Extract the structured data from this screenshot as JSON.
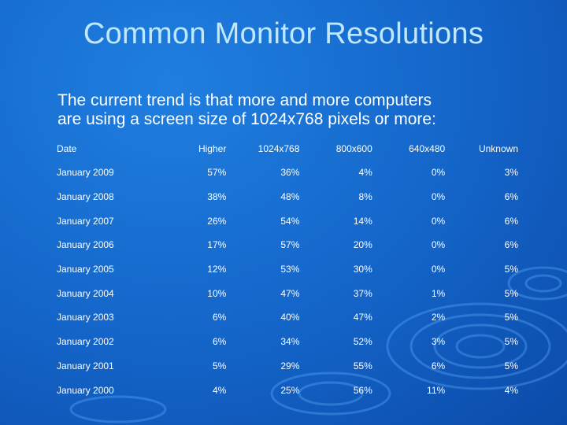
{
  "title": "Common Monitor Resolutions",
  "subtitle_line1": "The current trend is that more and more computers",
  "subtitle_line2": "are using a screen size of 1024x768 pixels or more:",
  "table": {
    "headers": [
      "Date",
      "Higher",
      "1024x768",
      "800x600",
      "640x480",
      "Unknown"
    ],
    "rows": [
      [
        "January 2009",
        "57%",
        "36%",
        "4%",
        "0%",
        "3%"
      ],
      [
        "January 2008",
        "38%",
        "48%",
        "8%",
        "0%",
        "6%"
      ],
      [
        "January 2007",
        "26%",
        "54%",
        "14%",
        "0%",
        "6%"
      ],
      [
        "January 2006",
        "17%",
        "57%",
        "20%",
        "0%",
        "6%"
      ],
      [
        "January 2005",
        "12%",
        "53%",
        "30%",
        "0%",
        "5%"
      ],
      [
        "January 2004",
        "10%",
        "47%",
        "37%",
        "1%",
        "5%"
      ],
      [
        "January 2003",
        "6%",
        "40%",
        "47%",
        "2%",
        "5%"
      ],
      [
        "January 2002",
        "6%",
        "34%",
        "52%",
        "3%",
        "5%"
      ],
      [
        "January 2001",
        "5%",
        "29%",
        "55%",
        "6%",
        "5%"
      ],
      [
        "January 2000",
        "4%",
        "25%",
        "56%",
        "11%",
        "4%"
      ]
    ]
  },
  "colors": {
    "title": "#bfe8ff",
    "background": "#1464c8",
    "text": "#ffffff"
  }
}
